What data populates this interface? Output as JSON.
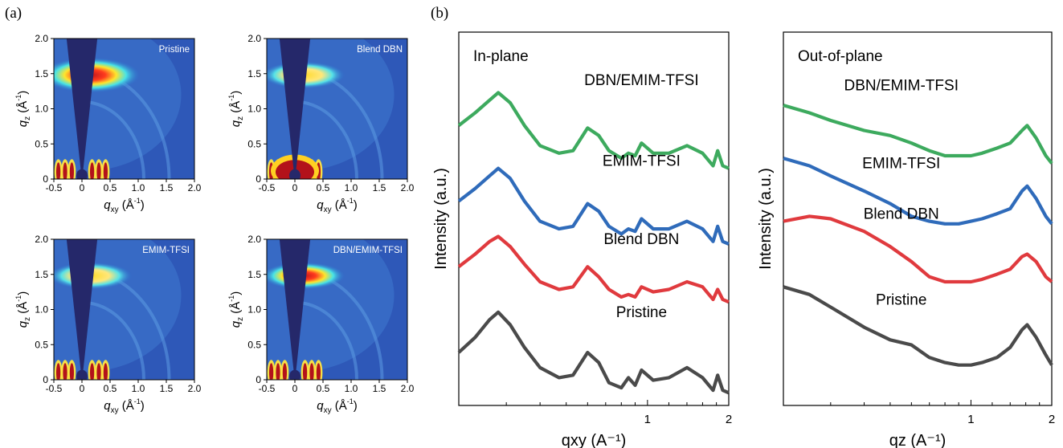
{
  "panel_labels": {
    "a": "(a)",
    "b": "(b)"
  },
  "gixd": {
    "x_axis": {
      "label_q": "q",
      "label_sub": "xy",
      "label_unit": " (Å",
      "label_sup": "-1",
      "label_close": ")",
      "ticks": [
        "-0.5",
        "0",
        "0.5",
        "1.0",
        "1.5",
        "2.0"
      ]
    },
    "y_axis": {
      "label_q": "q",
      "label_sub": "z",
      "label_unit": " (Å",
      "label_sup": "-1",
      "label_close": ")",
      "ticks": [
        "0",
        "0.5",
        "1.0",
        "1.5",
        "2.0"
      ]
    },
    "panels": [
      {
        "title": "Pristine"
      },
      {
        "title": "Blend DBN"
      },
      {
        "title": "EMIM-TFSI"
      },
      {
        "title": "DBN/EMIM-TFSI"
      }
    ]
  },
  "chart_data": [
    {
      "type": "line",
      "title": "In-plane",
      "xlabel": "qxy (A⁻¹)",
      "ylabel": "Intensity (a.u.)",
      "x_scale": "log",
      "xlim": [
        0.2,
        2.0
      ],
      "x_ticks": [
        "1",
        "2"
      ],
      "x": [
        0.2,
        0.23,
        0.26,
        0.28,
        0.31,
        0.35,
        0.4,
        0.47,
        0.53,
        0.6,
        0.66,
        0.72,
        0.8,
        0.85,
        0.9,
        0.95,
        1.05,
        1.2,
        1.4,
        1.6,
        1.75,
        1.82,
        1.9,
        2.0
      ],
      "series": [
        {
          "name": "DBN/EMIM-TFSI",
          "color": "#3daa5e",
          "values": [
            5.55,
            5.8,
            6.05,
            6.2,
            6.0,
            5.55,
            5.15,
            5.0,
            5.05,
            5.5,
            5.35,
            5.05,
            4.9,
            5.0,
            4.95,
            5.2,
            5.0,
            5.0,
            5.15,
            5.0,
            4.75,
            5.05,
            4.75,
            4.7
          ]
        },
        {
          "name": "EMIM-TFSI",
          "color": "#2f6bba",
          "values": [
            4.05,
            4.3,
            4.55,
            4.7,
            4.5,
            4.05,
            3.65,
            3.5,
            3.55,
            4.0,
            3.85,
            3.55,
            3.4,
            3.5,
            3.45,
            3.7,
            3.5,
            3.5,
            3.65,
            3.5,
            3.25,
            3.55,
            3.25,
            3.2
          ]
        },
        {
          "name": "Blend DBN",
          "color": "#e03a3e",
          "values": [
            2.75,
            3.0,
            3.25,
            3.35,
            3.15,
            2.8,
            2.45,
            2.3,
            2.35,
            2.75,
            2.55,
            2.3,
            2.15,
            2.2,
            2.15,
            2.35,
            2.25,
            2.3,
            2.45,
            2.35,
            2.1,
            2.3,
            2.1,
            2.05
          ]
        },
        {
          "name": "Pristine",
          "color": "#4a4a4a",
          "values": [
            1.05,
            1.35,
            1.7,
            1.85,
            1.6,
            1.15,
            0.75,
            0.55,
            0.6,
            1.05,
            0.85,
            0.45,
            0.35,
            0.55,
            0.4,
            0.7,
            0.5,
            0.55,
            0.75,
            0.55,
            0.3,
            0.6,
            0.3,
            0.25
          ]
        }
      ]
    },
    {
      "type": "line",
      "title": "Out-of-plane",
      "xlabel": "qz (A⁻¹)",
      "ylabel": "Intensity (a.u.)",
      "x_scale": "log",
      "xlim": [
        0.2,
        2.0
      ],
      "x_ticks": [
        "1",
        "2"
      ],
      "x": [
        0.2,
        0.25,
        0.3,
        0.4,
        0.5,
        0.6,
        0.7,
        0.8,
        0.9,
        1.0,
        1.1,
        1.25,
        1.4,
        1.55,
        1.62,
        1.75,
        1.9,
        2.0
      ],
      "series": [
        {
          "name": "DBN/EMIM-TFSI",
          "color": "#3daa5e",
          "values": [
            5.95,
            5.8,
            5.65,
            5.45,
            5.35,
            5.2,
            5.05,
            4.95,
            4.95,
            4.95,
            5.0,
            5.1,
            5.2,
            5.45,
            5.55,
            5.3,
            4.95,
            4.8
          ]
        },
        {
          "name": "EMIM-TFSI",
          "color": "#2f6bba",
          "values": [
            4.9,
            4.75,
            4.55,
            4.25,
            4.0,
            3.75,
            3.65,
            3.6,
            3.6,
            3.65,
            3.7,
            3.8,
            3.9,
            4.25,
            4.35,
            4.1,
            3.75,
            3.6
          ]
        },
        {
          "name": "Blend DBN",
          "color": "#e03a3e",
          "values": [
            3.65,
            3.75,
            3.7,
            3.45,
            3.15,
            2.85,
            2.55,
            2.45,
            2.45,
            2.45,
            2.5,
            2.6,
            2.7,
            2.95,
            3.0,
            2.85,
            2.55,
            2.45
          ]
        },
        {
          "name": "Pristine",
          "color": "#4a4a4a",
          "values": [
            2.35,
            2.2,
            1.95,
            1.55,
            1.3,
            1.2,
            0.95,
            0.85,
            0.8,
            0.8,
            0.85,
            0.95,
            1.15,
            1.5,
            1.6,
            1.35,
            1.0,
            0.8
          ]
        }
      ]
    }
  ]
}
